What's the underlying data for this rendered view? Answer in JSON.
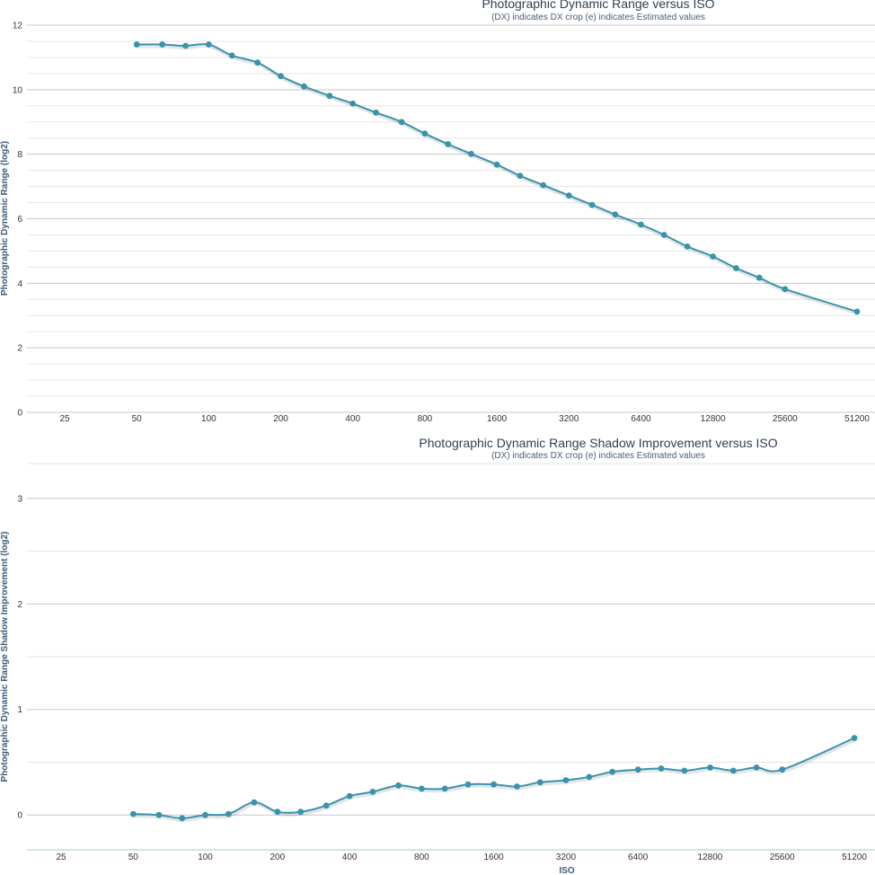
{
  "colors": {
    "series": "#3a93aa",
    "grid_major": "#c8c8c8",
    "grid_minor": "#e6e6e6",
    "text": "#333333",
    "title": "#2f3f52",
    "axis_title": "#3b5a7a"
  },
  "chart_data": [
    {
      "type": "line",
      "title": "Photographic Dynamic Range versus ISO",
      "subtitle": "(DX) indicates DX crop (e) indicates Estimated values",
      "xlabel": "",
      "ylabel": "Photographic Dynamic Range (log2)",
      "x_scale": "log2",
      "x_ticks": [
        "25",
        "50",
        "100",
        "200",
        "400",
        "800",
        "1600",
        "3200",
        "6400",
        "12800",
        "25600",
        "51200"
      ],
      "y_ticks": [
        "0",
        "2",
        "4",
        "6",
        "8",
        "10",
        "12"
      ],
      "ylim": [
        0,
        12
      ],
      "grid": true,
      "series": [
        {
          "x": [
            50,
            64,
            80,
            100,
            125,
            160,
            200,
            250,
            320,
            400,
            500,
            640,
            800,
            1000,
            1250,
            1600,
            2000,
            2500,
            3200,
            4000,
            5000,
            6400,
            8000,
            10000,
            12800,
            16000,
            20000,
            25600,
            51200
          ],
          "y": [
            11.4,
            11.4,
            11.36,
            11.4,
            11.06,
            10.84,
            10.42,
            10.1,
            9.81,
            9.57,
            9.29,
            9.0,
            8.64,
            8.31,
            8.01,
            7.68,
            7.33,
            7.04,
            6.72,
            6.43,
            6.13,
            5.82,
            5.5,
            5.14,
            4.83,
            4.47,
            4.17,
            3.82,
            3.12
          ]
        }
      ]
    },
    {
      "type": "line",
      "title": "Photographic Dynamic Range Shadow Improvement versus ISO",
      "subtitle": "(DX) indicates DX crop (e) indicates Estimated values",
      "xlabel": "ISO",
      "ylabel": "Photographic Dynamic Range Shadow Improvement (log2)",
      "x_scale": "log2",
      "x_ticks": [
        "25",
        "50",
        "100",
        "200",
        "400",
        "800",
        "1600",
        "3200",
        "6400",
        "12800",
        "25600",
        "51200"
      ],
      "y_ticks": [
        "0",
        "1",
        "2",
        "3"
      ],
      "ylim": [
        -0.33,
        3.33
      ],
      "grid": true,
      "series": [
        {
          "x": [
            50,
            64,
            80,
            100,
            125,
            160,
            200,
            250,
            320,
            400,
            500,
            640,
            800,
            1000,
            1250,
            1600,
            2000,
            2500,
            3200,
            4000,
            5000,
            6400,
            8000,
            10000,
            12800,
            16000,
            20000,
            25600,
            51200
          ],
          "y": [
            0.01,
            0.0,
            -0.03,
            0.0,
            0.01,
            0.12,
            0.03,
            0.03,
            0.09,
            0.18,
            0.22,
            0.28,
            0.25,
            0.25,
            0.29,
            0.29,
            0.27,
            0.31,
            0.33,
            0.36,
            0.41,
            0.43,
            0.44,
            0.42,
            0.45,
            0.42,
            0.45,
            0.43,
            0.73
          ]
        }
      ]
    }
  ]
}
